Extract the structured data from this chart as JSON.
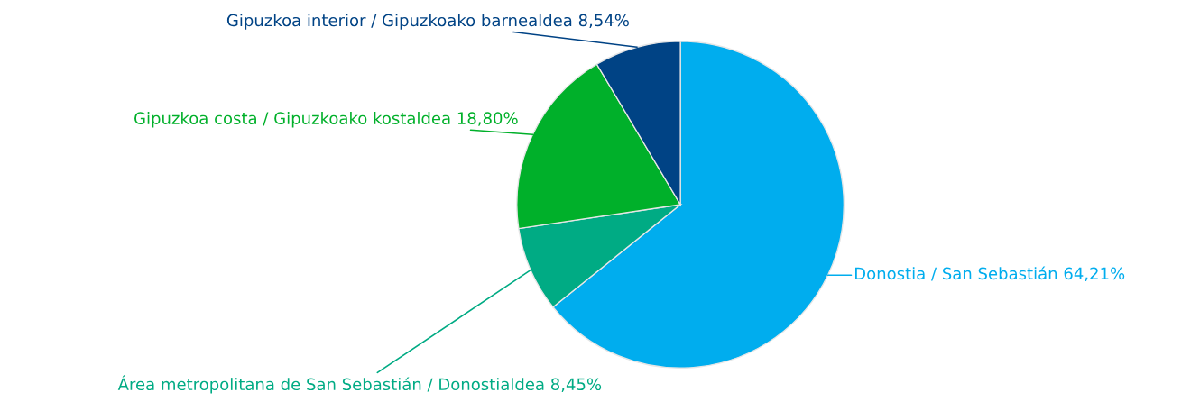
{
  "chart_data": {
    "type": "pie",
    "categories": [
      "Donostia / San Sebastián",
      "Área metropolitana de San Sebastián / Donostialdea",
      "Gipuzkoa costa / Gipuzkoako kostaldea",
      "Gipuzkoa interior / Gipuzkoako barnealdea"
    ],
    "values": [
      64.21,
      8.45,
      18.8,
      8.54
    ],
    "value_labels": [
      "64,21%",
      "8,45%",
      "18,80%",
      "8,54%"
    ],
    "colors": [
      "#00adee",
      "#00ab84",
      "#00b02a",
      "#004385"
    ],
    "legend": false
  }
}
